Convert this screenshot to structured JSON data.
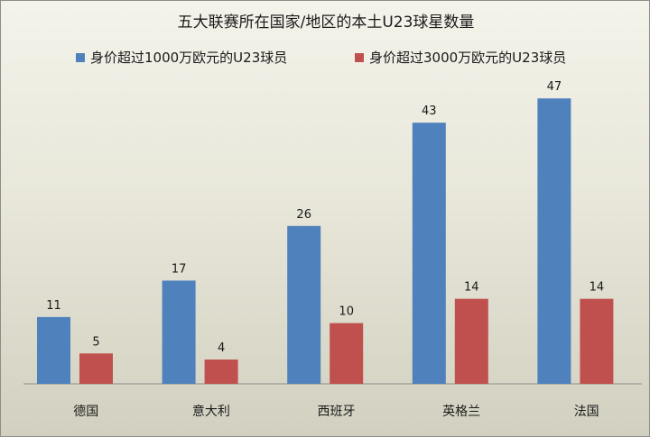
{
  "chart_data": {
    "type": "bar",
    "title": "五大联赛所在国家/地区的本土U23球星数量",
    "categories": [
      "德国",
      "意大利",
      "西班牙",
      "英格兰",
      "法国"
    ],
    "series": [
      {
        "name": "身价超过1000万欧元的U23球员",
        "values": [
          11,
          17,
          26,
          43,
          47
        ],
        "color": "#4f81bd"
      },
      {
        "name": "身价超过3000万欧元的U23球员",
        "values": [
          5,
          4,
          10,
          14,
          14
        ],
        "color": "#c0504d"
      }
    ],
    "ylim": [
      0,
      50
    ],
    "grid": false,
    "legend_position": "top"
  }
}
